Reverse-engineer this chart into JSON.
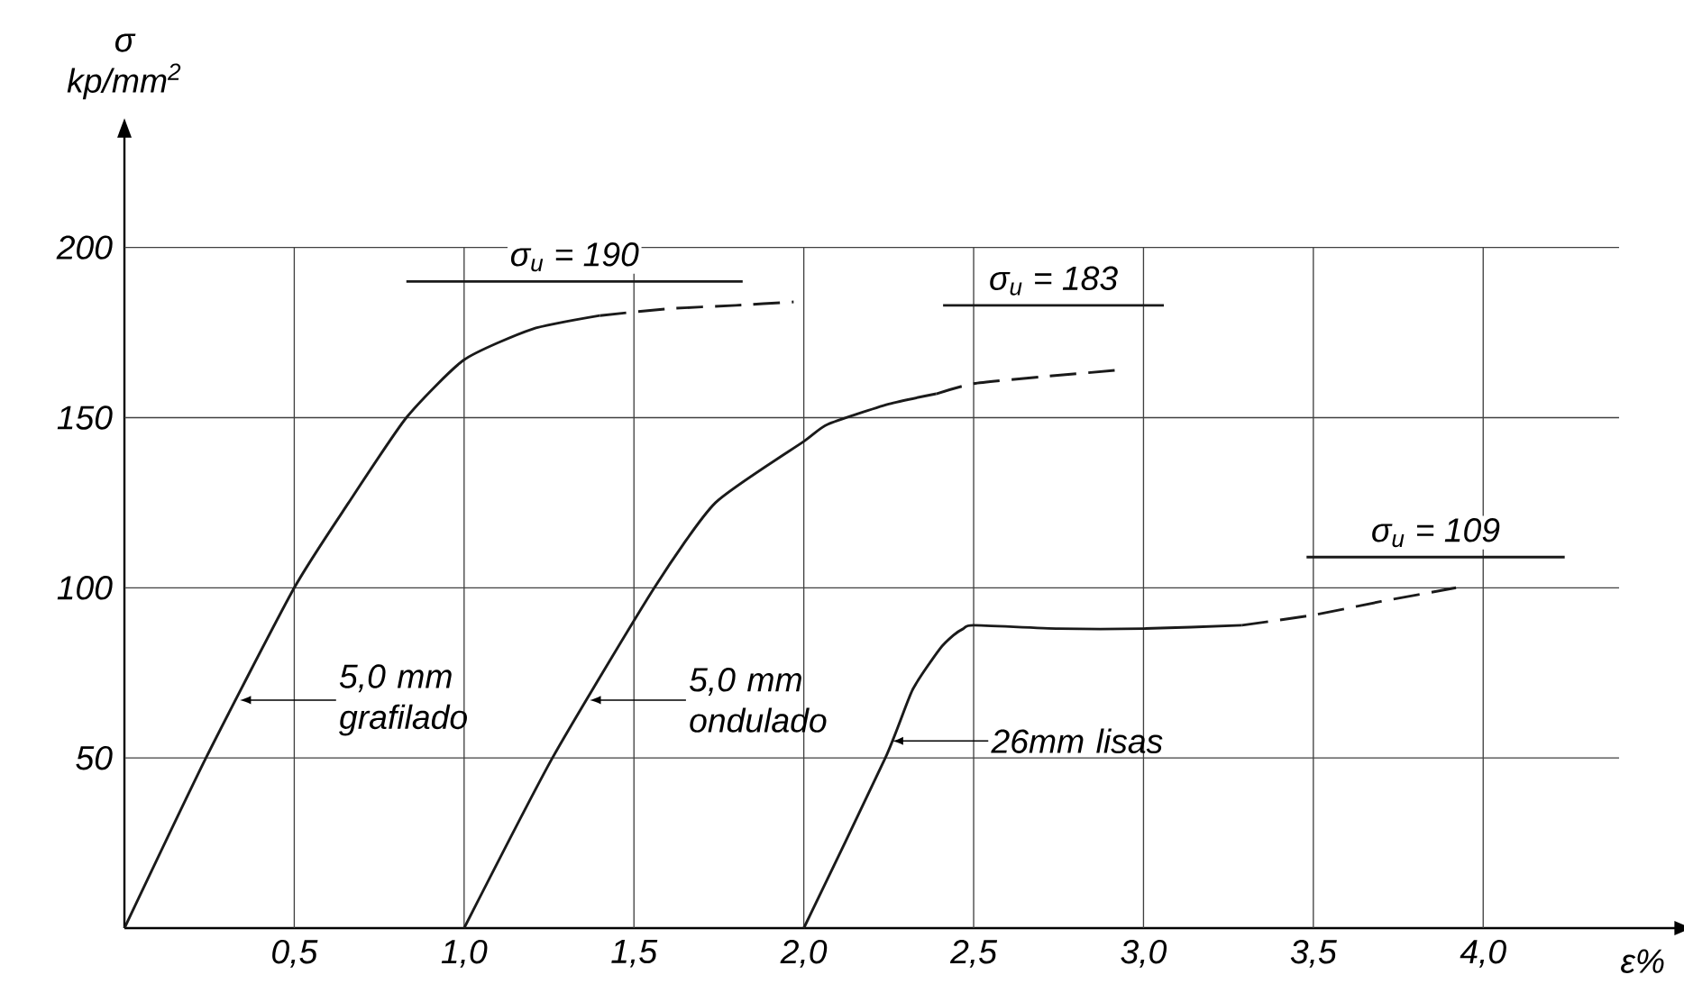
{
  "chart_data": {
    "type": "line",
    "xlabel": "ε%",
    "ylabel": "σ kp/mm$^{2}$",
    "xlim": [
      0,
      4.57
    ],
    "ylim": [
      0,
      233
    ],
    "xticks": [
      {
        "value": 0.5,
        "label": "0,5"
      },
      {
        "value": 1.0,
        "label": "1,0"
      },
      {
        "value": 1.5,
        "label": "1,5"
      },
      {
        "value": 2.0,
        "label": "2,0"
      },
      {
        "value": 2.5,
        "label": "2,5"
      },
      {
        "value": 3.0,
        "label": "3,0"
      },
      {
        "value": 3.5,
        "label": "3,5"
      },
      {
        "value": 4.0,
        "label": "4,0"
      }
    ],
    "yticks": [
      50,
      100,
      150,
      200
    ],
    "grid": true,
    "series": [
      {
        "color": "#1a1a1a",
        "line_style": "solid",
        "x": [
          0,
          0.24,
          0.5,
          0.66,
          0.83,
          1.0,
          1.2,
          1.4
        ],
        "values": [
          0,
          50,
          100,
          125,
          150,
          167,
          176,
          180
        ]
      },
      {
        "color": "#1a1a1a",
        "line_style": "dashed",
        "x": [
          1.4,
          1.6,
          1.8,
          1.97
        ],
        "values": [
          180,
          182,
          183,
          184
        ]
      },
      {
        "color": "#1a1a1a",
        "line_style": "solid",
        "x": [
          1.0,
          1.26,
          1.56,
          1.74,
          2.0,
          2.07,
          2.25,
          2.39
        ],
        "values": [
          0,
          50,
          100,
          125,
          143,
          148,
          154,
          157
        ]
      },
      {
        "color": "#1a1a1a",
        "line_style": "dashed",
        "x": [
          2.39,
          2.5,
          2.7,
          2.93
        ],
        "values": [
          157,
          160,
          162,
          164
        ]
      },
      {
        "color": "#1a1a1a",
        "line_style": "solid",
        "x": [
          2.0,
          2.24,
          2.32,
          2.4,
          2.44,
          2.47,
          2.5,
          2.75,
          3.0,
          3.29
        ],
        "values": [
          0,
          50,
          70,
          82,
          86,
          88,
          89,
          88,
          88,
          89
        ]
      },
      {
        "color": "#1a1a1a",
        "line_style": "dashed",
        "x": [
          3.29,
          3.5,
          3.7,
          3.92
        ],
        "values": [
          89,
          92,
          96,
          100
        ]
      },
      {
        "name": "σ$_{u}$ = 190",
        "color": "#1a1a1a",
        "line_style": "solid",
        "x": [
          0.83,
          1.82
        ],
        "values": [
          190,
          190
        ]
      },
      {
        "name": "σ$_{u}$ = 183",
        "color": "#1a1a1a",
        "line_style": "solid",
        "x": [
          2.41,
          3.06
        ],
        "values": [
          183,
          183
        ]
      },
      {
        "name": "σ$_{u}$ = 109",
        "color": "#1a1a1a",
        "line_style": "solid",
        "x": [
          3.48,
          4.24
        ],
        "values": [
          109,
          109
        ]
      }
    ],
    "annotations": [
      {
        "text": "5,0 mm grafilado",
        "x": 0.34,
        "y": 67
      },
      {
        "text": "5,0 mm ondulado",
        "x": 1.37,
        "y": 67
      },
      {
        "text": "26mm lisas",
        "x": 2.26,
        "y": 55
      }
    ]
  }
}
